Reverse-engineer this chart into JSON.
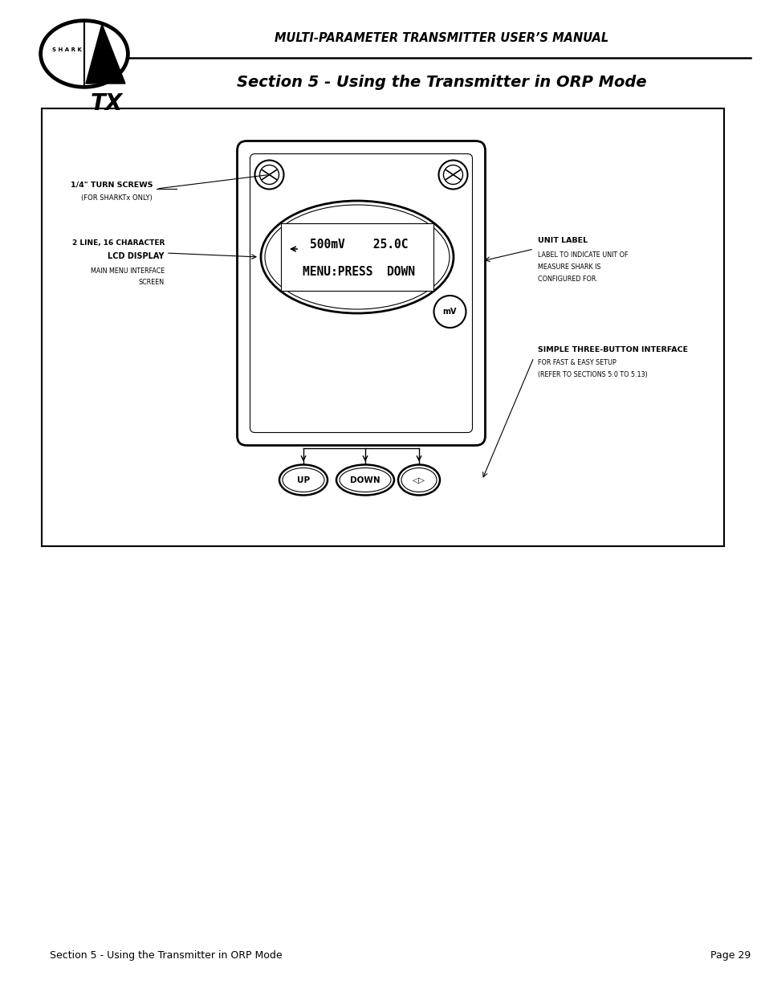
{
  "page_bg": "#ffffff",
  "header_title": "MULTI-PARAMETER TRANSMITTER USER’S MANUAL",
  "section_title": "Section 5 - Using the Transmitter in ORP Mode",
  "footer_left": "Section 5 - Using the Transmitter in ORP Mode",
  "footer_right": "Page 29",
  "label_turn_screws_bold": "1/4\" TURN SCREWS",
  "label_turn_screws_sub": "(FOR SHARKTx ONLY)",
  "label_lcd_line1": "2 LINE, 16 CHARACTER",
  "label_lcd_line2": "LCD DISPLAY",
  "label_lcd_sub1": "MAIN MENU INTERFACE",
  "label_lcd_sub2": "SCREEN",
  "label_unit_bold": "UNIT LABEL",
  "label_unit_sub1": "LABEL TO INDICATE UNIT OF",
  "label_unit_sub2": "MEASURE SHARK IS",
  "label_unit_sub3": "CONFIGURED FOR.",
  "label_3btn_bold": "SIMPLE THREE-BUTTON INTERFACE",
  "label_3btn_sub1": "FOR FAST & EASY SETUP",
  "label_3btn_sub2": "(REFER TO SECTIONS 5.0 TO 5.13)",
  "lcd_line1": "500mV    25.0C",
  "lcd_line2": "MENU:PRESS  DOWN",
  "mv_label": "mV",
  "btn1": "UP",
  "btn2": "DOWN",
  "btn3": "◁▷"
}
